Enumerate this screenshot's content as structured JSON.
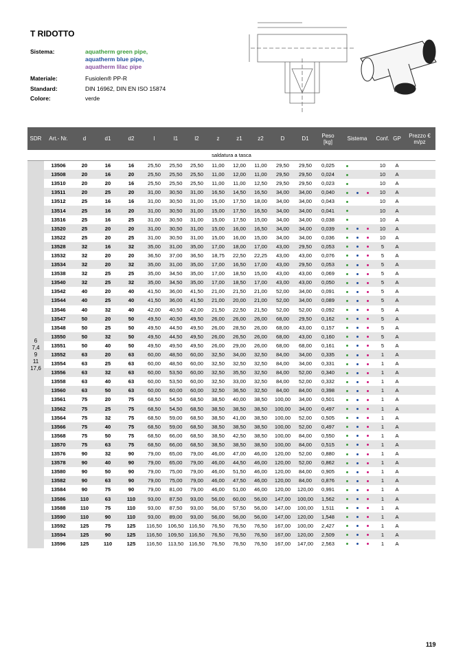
{
  "header": {
    "title": "T RIDOTTO",
    "info": [
      {
        "label": "Sistema:",
        "lines": [
          "aquatherm green pipe,",
          "aquatherm blue pipe,",
          "aquatherm lilac pipe"
        ]
      },
      {
        "label": "Materiale:",
        "lines": [
          "Fusiolen® PP-R"
        ]
      },
      {
        "label": "Standard:",
        "lines": [
          "DIN 16962, DIN EN ISO 15874"
        ]
      },
      {
        "label": "Colore:",
        "lines": [
          "verde"
        ]
      }
    ]
  },
  "table": {
    "columns": [
      "SDR",
      "Art.- Nr.",
      "d",
      "d1",
      "d2",
      "l",
      "l1",
      "l2",
      "z",
      "z1",
      "z2",
      "D",
      "D1",
      "Peso\n[kg]",
      "Sistema",
      "Conf.",
      "GP",
      "Prezzo €\nm/pz"
    ],
    "section": "saldatura a tasca",
    "sdr": [
      "6",
      "7,4",
      "9",
      "11",
      "17,6"
    ],
    "rows": [
      {
        "cells": [
          "13506",
          "20",
          "16",
          "16",
          "25,50",
          "25,50",
          "25,50",
          "11,00",
          "12,00",
          "11,00",
          "29,50",
          "29,50",
          "0,025"
        ],
        "sistema": [
          true,
          false,
          false
        ],
        "conf": "10",
        "gp": "A"
      },
      {
        "cells": [
          "13508",
          "20",
          "16",
          "20",
          "25,50",
          "25,50",
          "25,50",
          "11,00",
          "12,00",
          "11,00",
          "29,50",
          "29,50",
          "0,024"
        ],
        "sistema": [
          true,
          false,
          false
        ],
        "conf": "10",
        "gp": "A"
      },
      {
        "cells": [
          "13510",
          "20",
          "20",
          "16",
          "25,50",
          "25,50",
          "25,50",
          "11,00",
          "11,00",
          "12,50",
          "29,50",
          "29,50",
          "0,023"
        ],
        "sistema": [
          true,
          false,
          false
        ],
        "conf": "10",
        "gp": "A"
      },
      {
        "cells": [
          "13511",
          "20",
          "25",
          "20",
          "31,00",
          "30,50",
          "31,00",
          "16,50",
          "14,50",
          "16,50",
          "34,00",
          "34,00",
          "0,040"
        ],
        "sistema": [
          true,
          true,
          true
        ],
        "conf": "10",
        "gp": "A"
      },
      {
        "cells": [
          "13512",
          "25",
          "16",
          "16",
          "31,00",
          "30,50",
          "31,00",
          "15,00",
          "17,50",
          "18,00",
          "34,00",
          "34,00",
          "0,043"
        ],
        "sistema": [
          true,
          false,
          false
        ],
        "conf": "10",
        "gp": "A"
      },
      {
        "cells": [
          "13514",
          "25",
          "16",
          "20",
          "31,00",
          "30,50",
          "31,00",
          "15,00",
          "17,50",
          "16,50",
          "34,00",
          "34,00",
          "0,041"
        ],
        "sistema": [
          true,
          false,
          false
        ],
        "conf": "10",
        "gp": "A"
      },
      {
        "cells": [
          "13516",
          "25",
          "16",
          "25",
          "31,00",
          "30,50",
          "31,00",
          "15,00",
          "17,50",
          "15,00",
          "34,00",
          "34,00",
          "0,038"
        ],
        "sistema": [
          true,
          false,
          false
        ],
        "conf": "10",
        "gp": "A"
      },
      {
        "cells": [
          "13520",
          "25",
          "20",
          "20",
          "31,00",
          "30,50",
          "31,00",
          "15,00",
          "16,00",
          "16,50",
          "34,00",
          "34,00",
          "0,039"
        ],
        "sistema": [
          true,
          true,
          true
        ],
        "conf": "10",
        "gp": "A"
      },
      {
        "cells": [
          "13522",
          "25",
          "20",
          "25",
          "31,00",
          "30,50",
          "31,00",
          "15,00",
          "16,00",
          "15,00",
          "34,00",
          "34,00",
          "0,036"
        ],
        "sistema": [
          true,
          true,
          true
        ],
        "conf": "10",
        "gp": "A"
      },
      {
        "cells": [
          "13528",
          "32",
          "16",
          "32",
          "35,00",
          "31,00",
          "35,00",
          "17,00",
          "18,00",
          "17,00",
          "43,00",
          "29,50",
          "0,053"
        ],
        "sistema": [
          true,
          true,
          true
        ],
        "conf": "5",
        "gp": "A"
      },
      {
        "cells": [
          "13532",
          "32",
          "20",
          "20",
          "36,50",
          "37,00",
          "36,50",
          "18,75",
          "22,50",
          "22,25",
          "43,00",
          "43,00",
          "0,076"
        ],
        "sistema": [
          true,
          true,
          true
        ],
        "conf": "5",
        "gp": "A"
      },
      {
        "cells": [
          "13534",
          "32",
          "20",
          "32",
          "35,00",
          "31,00",
          "35,00",
          "17,00",
          "16,50",
          "17,00",
          "43,00",
          "29,50",
          "0,053"
        ],
        "sistema": [
          true,
          true,
          true
        ],
        "conf": "5",
        "gp": "A"
      },
      {
        "cells": [
          "13538",
          "32",
          "25",
          "25",
          "35,00",
          "34,50",
          "35,00",
          "17,00",
          "18,50",
          "15,00",
          "43,00",
          "43,00",
          "0,069"
        ],
        "sistema": [
          true,
          true,
          true
        ],
        "conf": "5",
        "gp": "A"
      },
      {
        "cells": [
          "13540",
          "32",
          "25",
          "32",
          "35,00",
          "34,50",
          "35,00",
          "17,00",
          "18,50",
          "17,00",
          "43,00",
          "43,00",
          "0,050"
        ],
        "sistema": [
          true,
          true,
          true
        ],
        "conf": "5",
        "gp": "A"
      },
      {
        "cells": [
          "13542",
          "40",
          "20",
          "40",
          "41,50",
          "36,00",
          "41,50",
          "21,00",
          "21,50",
          "21,00",
          "52,00",
          "34,00",
          "0,091"
        ],
        "sistema": [
          true,
          true,
          true
        ],
        "conf": "5",
        "gp": "A"
      },
      {
        "cells": [
          "13544",
          "40",
          "25",
          "40",
          "41,50",
          "36,00",
          "41,50",
          "21,00",
          "20,00",
          "21,00",
          "52,00",
          "34,00",
          "0,089"
        ],
        "sistema": [
          true,
          true,
          true
        ],
        "conf": "5",
        "gp": "A"
      },
      {
        "cells": [
          "13546",
          "40",
          "32",
          "40",
          "42,00",
          "40,50",
          "42,00",
          "21,50",
          "22,50",
          "21,50",
          "52,00",
          "52,00",
          "0,092"
        ],
        "sistema": [
          true,
          true,
          true
        ],
        "conf": "5",
        "gp": "A"
      },
      {
        "cells": [
          "13547",
          "50",
          "20",
          "50",
          "49,50",
          "40,50",
          "49,50",
          "26,00",
          "26,00",
          "26,00",
          "68,00",
          "29,50",
          "0,162"
        ],
        "sistema": [
          true,
          true,
          true
        ],
        "conf": "5",
        "gp": "A"
      },
      {
        "cells": [
          "13548",
          "50",
          "25",
          "50",
          "49,50",
          "44,50",
          "49,50",
          "26,00",
          "28,50",
          "26,00",
          "68,00",
          "43,00",
          "0,157"
        ],
        "sistema": [
          true,
          true,
          true
        ],
        "conf": "5",
        "gp": "A"
      },
      {
        "cells": [
          "13550",
          "50",
          "32",
          "50",
          "49,50",
          "44,50",
          "49,50",
          "26,00",
          "26,50",
          "26,00",
          "68,00",
          "43,00",
          "0,160"
        ],
        "sistema": [
          true,
          true,
          true
        ],
        "conf": "5",
        "gp": "A"
      },
      {
        "cells": [
          "13551",
          "50",
          "40",
          "50",
          "49,50",
          "49,50",
          "49,50",
          "26,00",
          "29,00",
          "26,00",
          "68,00",
          "68,00",
          "0,161"
        ],
        "sistema": [
          true,
          true,
          true
        ],
        "conf": "5",
        "gp": "A"
      },
      {
        "cells": [
          "13552",
          "63",
          "20",
          "63",
          "60,00",
          "48,50",
          "60,00",
          "32,50",
          "34,00",
          "32,50",
          "84,00",
          "34,00",
          "0,335"
        ],
        "sistema": [
          true,
          true,
          true
        ],
        "conf": "1",
        "gp": "A"
      },
      {
        "cells": [
          "13554",
          "63",
          "25",
          "63",
          "60,00",
          "48,50",
          "60,00",
          "32,50",
          "32,50",
          "32,50",
          "84,00",
          "34,00",
          "0,331"
        ],
        "sistema": [
          true,
          true,
          true
        ],
        "conf": "1",
        "gp": "A"
      },
      {
        "cells": [
          "13556",
          "63",
          "32",
          "63",
          "60,00",
          "53,50",
          "60,00",
          "32,50",
          "35,50",
          "32,50",
          "84,00",
          "52,00",
          "0,340"
        ],
        "sistema": [
          true,
          true,
          true
        ],
        "conf": "1",
        "gp": "A"
      },
      {
        "cells": [
          "13558",
          "63",
          "40",
          "63",
          "60,00",
          "53,50",
          "60,00",
          "32,50",
          "33,00",
          "32,50",
          "84,00",
          "52,00",
          "0,332"
        ],
        "sistema": [
          true,
          true,
          true
        ],
        "conf": "1",
        "gp": "A"
      },
      {
        "cells": [
          "13560",
          "63",
          "50",
          "63",
          "60,00",
          "60,00",
          "60,00",
          "32,50",
          "36,50",
          "32,50",
          "84,00",
          "84,00",
          "0,398"
        ],
        "sistema": [
          true,
          true,
          true
        ],
        "conf": "1",
        "gp": "A"
      },
      {
        "cells": [
          "13561",
          "75",
          "20",
          "75",
          "68,50",
          "54,50",
          "68,50",
          "38,50",
          "40,00",
          "38,50",
          "100,00",
          "34,00",
          "0,501"
        ],
        "sistema": [
          true,
          true,
          true
        ],
        "conf": "1",
        "gp": "A"
      },
      {
        "cells": [
          "13562",
          "75",
          "25",
          "75",
          "68,50",
          "54,50",
          "68,50",
          "38,50",
          "38,50",
          "38,50",
          "100,00",
          "34,00",
          "0,497"
        ],
        "sistema": [
          true,
          true,
          true
        ],
        "conf": "1",
        "gp": "A"
      },
      {
        "cells": [
          "13564",
          "75",
          "32",
          "75",
          "68,50",
          "59,00",
          "68,50",
          "38,50",
          "41,00",
          "38,50",
          "100,00",
          "52,00",
          "0,505"
        ],
        "sistema": [
          true,
          true,
          true
        ],
        "conf": "1",
        "gp": "A"
      },
      {
        "cells": [
          "13566",
          "75",
          "40",
          "75",
          "68,50",
          "59,00",
          "68,50",
          "38,50",
          "38,50",
          "38,50",
          "100,00",
          "52,00",
          "0,497"
        ],
        "sistema": [
          true,
          true,
          true
        ],
        "conf": "1",
        "gp": "A"
      },
      {
        "cells": [
          "13568",
          "75",
          "50",
          "75",
          "68,50",
          "66,00",
          "68,50",
          "38,50",
          "42,50",
          "38,50",
          "100,00",
          "84,00",
          "0,550"
        ],
        "sistema": [
          true,
          true,
          true
        ],
        "conf": "1",
        "gp": "A"
      },
      {
        "cells": [
          "13570",
          "75",
          "63",
          "75",
          "68,50",
          "66,00",
          "68,50",
          "38,50",
          "38,50",
          "38,50",
          "100,00",
          "84,00",
          "0,515"
        ],
        "sistema": [
          true,
          true,
          true
        ],
        "conf": "1",
        "gp": "A"
      },
      {
        "cells": [
          "13576",
          "90",
          "32",
          "90",
          "79,00",
          "65,00",
          "79,00",
          "46,00",
          "47,00",
          "46,00",
          "120,00",
          "52,00",
          "0,880"
        ],
        "sistema": [
          true,
          true,
          true
        ],
        "conf": "1",
        "gp": "A"
      },
      {
        "cells": [
          "13578",
          "90",
          "40",
          "90",
          "79,00",
          "65,00",
          "79,00",
          "46,00",
          "44,50",
          "46,00",
          "120,00",
          "52,00",
          "0,862"
        ],
        "sistema": [
          true,
          true,
          true
        ],
        "conf": "1",
        "gp": "A"
      },
      {
        "cells": [
          "13580",
          "90",
          "50",
          "90",
          "79,00",
          "75,00",
          "79,00",
          "46,00",
          "51,50",
          "46,00",
          "120,00",
          "84,00",
          "0,905"
        ],
        "sistema": [
          true,
          true,
          true
        ],
        "conf": "1",
        "gp": "A"
      },
      {
        "cells": [
          "13582",
          "90",
          "63",
          "90",
          "79,00",
          "75,00",
          "79,00",
          "46,00",
          "47,50",
          "46,00",
          "120,00",
          "84,00",
          "0,876"
        ],
        "sistema": [
          true,
          true,
          true
        ],
        "conf": "1",
        "gp": "A"
      },
      {
        "cells": [
          "13584",
          "90",
          "75",
          "90",
          "79,00",
          "81,00",
          "79,00",
          "46,00",
          "51,00",
          "46,00",
          "120,00",
          "120,00",
          "0,991"
        ],
        "sistema": [
          true,
          true,
          true
        ],
        "conf": "1",
        "gp": "A"
      },
      {
        "cells": [
          "13586",
          "110",
          "63",
          "110",
          "93,00",
          "87,50",
          "93,00",
          "56,00",
          "60,00",
          "56,00",
          "147,00",
          "100,00",
          "1,562"
        ],
        "sistema": [
          true,
          true,
          true
        ],
        "conf": "1",
        "gp": "A"
      },
      {
        "cells": [
          "13588",
          "110",
          "75",
          "110",
          "93,00",
          "87,50",
          "93,00",
          "56,00",
          "57,50",
          "56,00",
          "147,00",
          "100,00",
          "1,511"
        ],
        "sistema": [
          true,
          true,
          true
        ],
        "conf": "1",
        "gp": "A"
      },
      {
        "cells": [
          "13590",
          "110",
          "90",
          "110",
          "93,00",
          "89,00",
          "93,00",
          "56,00",
          "56,00",
          "56,00",
          "147,00",
          "120,00",
          "1,548"
        ],
        "sistema": [
          true,
          true,
          true
        ],
        "conf": "1",
        "gp": "A"
      },
      {
        "cells": [
          "13592",
          "125",
          "75",
          "125",
          "116,50",
          "106,50",
          "116,50",
          "76,50",
          "76,50",
          "76,50",
          "167,00",
          "100,00",
          "2,427"
        ],
        "sistema": [
          true,
          true,
          true
        ],
        "conf": "1",
        "gp": "A"
      },
      {
        "cells": [
          "13594",
          "125",
          "90",
          "125",
          "116,50",
          "109,50",
          "116,50",
          "76,50",
          "76,50",
          "76,50",
          "167,00",
          "120,00",
          "2,509"
        ],
        "sistema": [
          true,
          true,
          true
        ],
        "conf": "1",
        "gp": "A"
      },
      {
        "cells": [
          "13596",
          "125",
          "110",
          "125",
          "116,50",
          "113,50",
          "116,50",
          "76,50",
          "76,50",
          "76,50",
          "167,00",
          "147,00",
          "2,563"
        ],
        "sistema": [
          true,
          true,
          true
        ],
        "conf": "1",
        "gp": "A"
      }
    ]
  },
  "footer": {
    "page": "119"
  }
}
